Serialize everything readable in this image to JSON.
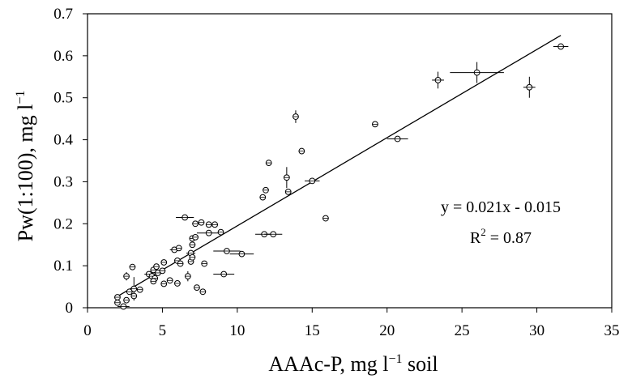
{
  "chart_data": {
    "type": "scatter",
    "xlabel": {
      "main": "AAAc-P, mg l",
      "sup": "−1",
      "tail": " soil"
    },
    "ylabel": {
      "main": "Pw(1:100), mg l",
      "sup": "−1"
    },
    "xlim": [
      0,
      35
    ],
    "ylim": [
      0,
      0.7
    ],
    "xticks": [
      "0",
      "5",
      "10",
      "15",
      "20",
      "25",
      "30",
      "35"
    ],
    "yticks": [
      "0",
      "0.1",
      "0.2",
      "0.3",
      "0.4",
      "0.5",
      "0.6",
      "0.7"
    ],
    "grid": false,
    "legend": "none",
    "annotation": {
      "equation": "y = 0.021x - 0.015",
      "r2_label": "R",
      "r2_sup": "2",
      "r2_value": " = 0.87"
    },
    "trendline": {
      "slope": 0.021,
      "intercept": -0.015,
      "x_range": [
        1.8,
        31.6
      ]
    },
    "points": [
      {
        "x": 2.0,
        "y": 0.025
      },
      {
        "x": 2.0,
        "y": 0.012
      },
      {
        "x": 2.4,
        "y": 0.003,
        "xerr": 0.4
      },
      {
        "x": 2.6,
        "y": 0.018
      },
      {
        "x": 2.6,
        "y": 0.075,
        "yerr": 0.01
      },
      {
        "x": 2.8,
        "y": 0.038
      },
      {
        "x": 3.0,
        "y": 0.097
      },
      {
        "x": 3.1,
        "y": 0.045,
        "yerr": 0.028
      },
      {
        "x": 3.1,
        "y": 0.028
      },
      {
        "x": 3.5,
        "y": 0.043
      },
      {
        "x": 4.1,
        "y": 0.08,
        "xerr": 0.3
      },
      {
        "x": 4.3,
        "y": 0.075
      },
      {
        "x": 4.4,
        "y": 0.09
      },
      {
        "x": 4.5,
        "y": 0.07
      },
      {
        "x": 4.6,
        "y": 0.098
      },
      {
        "x": 4.7,
        "y": 0.083,
        "xerr": 0.4
      },
      {
        "x": 4.4,
        "y": 0.063
      },
      {
        "x": 5.0,
        "y": 0.088
      },
      {
        "x": 5.1,
        "y": 0.108
      },
      {
        "x": 5.1,
        "y": 0.057
      },
      {
        "x": 5.5,
        "y": 0.065
      },
      {
        "x": 5.8,
        "y": 0.138,
        "xerr": 0.3
      },
      {
        "x": 6.0,
        "y": 0.112
      },
      {
        "x": 6.1,
        "y": 0.142
      },
      {
        "x": 6.0,
        "y": 0.058
      },
      {
        "x": 6.2,
        "y": 0.105
      },
      {
        "x": 6.5,
        "y": 0.215,
        "xerr": 0.6
      },
      {
        "x": 6.7,
        "y": 0.075,
        "yerr": 0.012
      },
      {
        "x": 6.9,
        "y": 0.11
      },
      {
        "x": 6.9,
        "y": 0.13,
        "xerr": 0.3
      },
      {
        "x": 7.0,
        "y": 0.165
      },
      {
        "x": 7.0,
        "y": 0.15
      },
      {
        "x": 7.2,
        "y": 0.2
      },
      {
        "x": 7.2,
        "y": 0.168
      },
      {
        "x": 7.0,
        "y": 0.12
      },
      {
        "x": 7.3,
        "y": 0.048
      },
      {
        "x": 7.6,
        "y": 0.203
      },
      {
        "x": 7.7,
        "y": 0.038
      },
      {
        "x": 7.8,
        "y": 0.105
      },
      {
        "x": 8.1,
        "y": 0.198
      },
      {
        "x": 8.1,
        "y": 0.178,
        "xerr": 0.8
      },
      {
        "x": 8.5,
        "y": 0.198
      },
      {
        "x": 8.9,
        "y": 0.18
      },
      {
        "x": 9.1,
        "y": 0.08,
        "xerr": 0.7
      },
      {
        "x": 9.3,
        "y": 0.135,
        "xerr": 0.9
      },
      {
        "x": 10.3,
        "y": 0.128,
        "xerr": 0.8
      },
      {
        "x": 11.7,
        "y": 0.263
      },
      {
        "x": 11.8,
        "y": 0.175,
        "xerr": 0.6
      },
      {
        "x": 11.9,
        "y": 0.28
      },
      {
        "x": 12.1,
        "y": 0.345
      },
      {
        "x": 12.4,
        "y": 0.175,
        "xerr": 0.6
      },
      {
        "x": 13.3,
        "y": 0.31,
        "yerr": 0.025
      },
      {
        "x": 13.4,
        "y": 0.276
      },
      {
        "x": 13.9,
        "y": 0.455,
        "yerr": 0.015
      },
      {
        "x": 14.3,
        "y": 0.373
      },
      {
        "x": 15.0,
        "y": 0.302,
        "xerr": 0.5
      },
      {
        "x": 15.9,
        "y": 0.213
      },
      {
        "x": 19.2,
        "y": 0.437
      },
      {
        "x": 20.7,
        "y": 0.402,
        "xerr": 0.7
      },
      {
        "x": 23.4,
        "y": 0.542,
        "yerr": 0.02,
        "xerr": 0.4
      },
      {
        "x": 26.0,
        "y": 0.56,
        "xerr": 1.8,
        "yerr": 0.025
      },
      {
        "x": 29.5,
        "y": 0.525,
        "yerr": 0.025,
        "xerr": 0.4
      },
      {
        "x": 31.6,
        "y": 0.622,
        "xerr": 0.5
      }
    ]
  }
}
